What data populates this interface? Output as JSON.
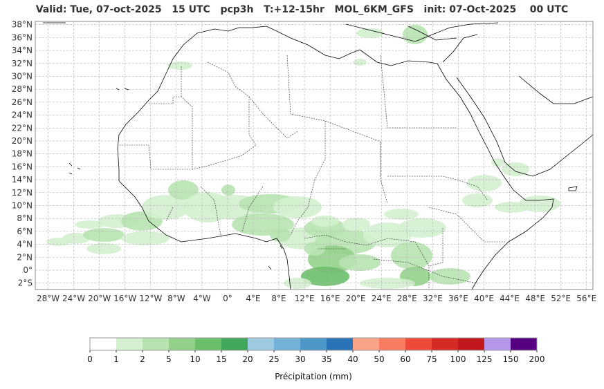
{
  "map": {
    "title": "Valid: Tue, 07-oct-2025   15 UTC   pcp3h   T:+12-15hr   MOL_6KM_GFS   init: 07-Oct-2025    00 UTC",
    "lat_labels": [
      "38°N",
      "36°N",
      "34°N",
      "32°N",
      "30°N",
      "28°N",
      "26°N",
      "24°N",
      "22°N",
      "20°N",
      "18°N",
      "16°N",
      "14°N",
      "12°N",
      "10°N",
      "8°N",
      "6°N",
      "4°N",
      "2°N",
      "0°",
      "2°S"
    ],
    "lon_labels": [
      "28°W",
      "24°W",
      "20°W",
      "16°W",
      "12°W",
      "8°W",
      "4°W",
      "0°",
      "4°E",
      "8°E",
      "12°E",
      "16°E",
      "20°E",
      "24°E",
      "28°E",
      "32°E",
      "36°E",
      "40°E",
      "44°E",
      "48°E",
      "52°E",
      "56°E"
    ],
    "extent": {
      "lon_min": -30,
      "lon_max": 57,
      "lat_min": -3,
      "lat_max": 38.5
    }
  },
  "colorbar": {
    "label": "Précipitation (mm)",
    "ticks": [
      "0",
      "1",
      "2",
      "5",
      "10",
      "15",
      "20",
      "25",
      "30",
      "35",
      "40",
      "50",
      "60",
      "75",
      "100",
      "125",
      "150",
      "200"
    ],
    "colors": [
      "#ffffff",
      "#d4f0d0",
      "#b8e3b1",
      "#93d18b",
      "#6bbf6a",
      "#41a85b",
      "#9ecae1",
      "#74b1d8",
      "#4c96c8",
      "#2a73b6",
      "#f9a389",
      "#f77b5e",
      "#ee4a3a",
      "#d52a26",
      "#c0181c",
      "#b596ea",
      "#54007f"
    ]
  },
  "colors": {
    "land": "#ffffff",
    "grid": "#b0b0b0",
    "coast": "#000000",
    "frame": "#888888"
  }
}
